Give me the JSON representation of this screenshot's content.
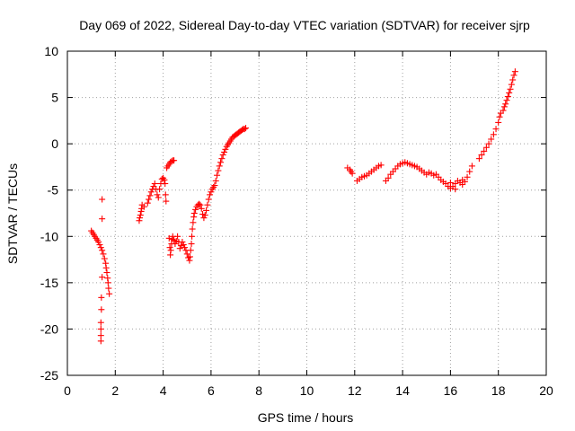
{
  "chart_data": {
    "type": "scatter",
    "title": "Day 069 of 2022, Sidereal Day-to-day VTEC variation (SDTVAR) for receiver sjrp",
    "xlabel": "GPS time / hours",
    "ylabel": "SDTVAR / TECUs",
    "xlim": [
      0,
      20
    ],
    "ylim": [
      -25,
      10
    ],
    "xticks": [
      "0",
      "2",
      "4",
      "6",
      "8",
      "10",
      "12",
      "14",
      "16",
      "18",
      "20"
    ],
    "yticks": [
      "10",
      "5",
      "0",
      "-5",
      "-10",
      "-15",
      "-20",
      "-25"
    ],
    "grid": true,
    "marker": "+",
    "color": "#ff0000",
    "series": [
      {
        "name": "sjrp",
        "points": [
          [
            1.0,
            -9.4
          ],
          [
            1.05,
            -9.6
          ],
          [
            1.1,
            -9.8
          ],
          [
            1.15,
            -10.0
          ],
          [
            1.2,
            -10.2
          ],
          [
            1.25,
            -10.4
          ],
          [
            1.3,
            -10.6
          ],
          [
            1.35,
            -10.9
          ],
          [
            1.4,
            -11.2
          ],
          [
            1.45,
            -11.5
          ],
          [
            1.5,
            -11.9
          ],
          [
            1.55,
            -12.4
          ],
          [
            1.6,
            -12.9
          ],
          [
            1.62,
            -13.4
          ],
          [
            1.65,
            -13.9
          ],
          [
            1.68,
            -14.5
          ],
          [
            1.7,
            -15.0
          ],
          [
            1.72,
            -15.6
          ],
          [
            1.75,
            -16.2
          ],
          [
            1.45,
            -6.0
          ],
          [
            1.45,
            -8.1
          ],
          [
            1.45,
            -14.4
          ],
          [
            1.42,
            -16.6
          ],
          [
            1.42,
            -17.9
          ],
          [
            1.4,
            -19.3
          ],
          [
            1.4,
            -20.0
          ],
          [
            1.4,
            -20.7
          ],
          [
            1.4,
            -21.3
          ],
          [
            3.0,
            -8.3
          ],
          [
            3.02,
            -8.0
          ],
          [
            3.05,
            -7.7
          ],
          [
            3.08,
            -7.3
          ],
          [
            3.1,
            -7.0
          ],
          [
            3.12,
            -6.6
          ],
          [
            3.2,
            -6.8
          ],
          [
            3.35,
            -6.4
          ],
          [
            3.4,
            -6.0
          ],
          [
            3.45,
            -5.6
          ],
          [
            3.5,
            -5.2
          ],
          [
            3.55,
            -4.9
          ],
          [
            3.6,
            -4.6
          ],
          [
            3.65,
            -4.3
          ],
          [
            3.7,
            -4.9
          ],
          [
            3.75,
            -5.5
          ],
          [
            3.8,
            -5.8
          ],
          [
            3.85,
            -4.9
          ],
          [
            3.9,
            -4.3
          ],
          [
            3.95,
            -3.8
          ],
          [
            4.0,
            -3.7
          ],
          [
            4.05,
            -3.9
          ],
          [
            4.08,
            -4.3
          ],
          [
            4.1,
            -5.5
          ],
          [
            4.12,
            -6.2
          ],
          [
            4.15,
            -2.6
          ],
          [
            4.2,
            -2.4
          ],
          [
            4.25,
            -2.2
          ],
          [
            4.3,
            -2.0
          ],
          [
            4.35,
            -1.9
          ],
          [
            4.4,
            -1.8
          ],
          [
            4.45,
            -1.8
          ],
          [
            4.25,
            -10.2
          ],
          [
            4.28,
            -11.2
          ],
          [
            4.3,
            -12.0
          ],
          [
            4.32,
            -11.5
          ],
          [
            4.35,
            -10.8
          ],
          [
            4.38,
            -10.3
          ],
          [
            4.4,
            -10.0
          ],
          [
            4.45,
            -10.4
          ],
          [
            4.5,
            -10.8
          ],
          [
            4.55,
            -10.5
          ],
          [
            4.6,
            -10.0
          ],
          [
            4.65,
            -10.6
          ],
          [
            4.7,
            -11.3
          ],
          [
            4.75,
            -11.0
          ],
          [
            4.8,
            -10.6
          ],
          [
            4.85,
            -10.9
          ],
          [
            4.9,
            -11.2
          ],
          [
            4.95,
            -11.5
          ],
          [
            5.0,
            -11.9
          ],
          [
            5.05,
            -12.3
          ],
          [
            5.1,
            -12.6
          ],
          [
            5.12,
            -12.2
          ],
          [
            5.15,
            -11.5
          ],
          [
            5.18,
            -10.8
          ],
          [
            5.2,
            -10.0
          ],
          [
            5.22,
            -9.2
          ],
          [
            5.25,
            -8.5
          ],
          [
            5.28,
            -7.9
          ],
          [
            5.3,
            -7.5
          ],
          [
            5.35,
            -7.1
          ],
          [
            5.4,
            -6.8
          ],
          [
            5.45,
            -6.6
          ],
          [
            5.5,
            -6.5
          ],
          [
            5.55,
            -6.6
          ],
          [
            5.6,
            -7.0
          ],
          [
            5.65,
            -7.6
          ],
          [
            5.7,
            -8.0
          ],
          [
            5.75,
            -7.7
          ],
          [
            5.8,
            -7.2
          ],
          [
            5.85,
            -6.6
          ],
          [
            5.9,
            -6.0
          ],
          [
            5.95,
            -5.5
          ],
          [
            6.0,
            -5.2
          ],
          [
            6.05,
            -4.9
          ],
          [
            6.1,
            -4.7
          ],
          [
            6.15,
            -4.5
          ],
          [
            6.2,
            -4.0
          ],
          [
            6.25,
            -3.4
          ],
          [
            6.3,
            -2.9
          ],
          [
            6.35,
            -2.4
          ],
          [
            6.4,
            -2.0
          ],
          [
            6.45,
            -1.6
          ],
          [
            6.5,
            -1.2
          ],
          [
            6.55,
            -0.9
          ],
          [
            6.6,
            -0.6
          ],
          [
            6.65,
            -0.3
          ],
          [
            6.7,
            -0.1
          ],
          [
            6.75,
            0.1
          ],
          [
            6.8,
            0.3
          ],
          [
            6.85,
            0.5
          ],
          [
            6.9,
            0.7
          ],
          [
            6.95,
            0.8
          ],
          [
            7.0,
            0.9
          ],
          [
            7.05,
            1.0
          ],
          [
            7.1,
            1.1
          ],
          [
            7.15,
            1.2
          ],
          [
            7.2,
            1.3
          ],
          [
            7.25,
            1.4
          ],
          [
            7.3,
            1.5
          ],
          [
            7.35,
            1.6
          ],
          [
            7.4,
            1.6
          ],
          [
            7.45,
            1.7
          ],
          [
            11.7,
            -2.6
          ],
          [
            11.8,
            -2.8
          ],
          [
            11.85,
            -3.0
          ],
          [
            11.9,
            -3.2
          ],
          [
            12.1,
            -4.0
          ],
          [
            12.2,
            -3.8
          ],
          [
            12.3,
            -3.6
          ],
          [
            12.4,
            -3.5
          ],
          [
            12.5,
            -3.4
          ],
          [
            12.6,
            -3.2
          ],
          [
            12.7,
            -3.0
          ],
          [
            12.8,
            -2.8
          ],
          [
            12.9,
            -2.6
          ],
          [
            13.0,
            -2.4
          ],
          [
            13.1,
            -2.3
          ],
          [
            13.3,
            -4.0
          ],
          [
            13.4,
            -3.7
          ],
          [
            13.5,
            -3.3
          ],
          [
            13.6,
            -3.0
          ],
          [
            13.7,
            -2.7
          ],
          [
            13.8,
            -2.4
          ],
          [
            13.9,
            -2.2
          ],
          [
            14.0,
            -2.1
          ],
          [
            14.1,
            -2.0
          ],
          [
            14.2,
            -2.1
          ],
          [
            14.3,
            -2.2
          ],
          [
            14.4,
            -2.3
          ],
          [
            14.5,
            -2.4
          ],
          [
            14.6,
            -2.5
          ],
          [
            14.7,
            -2.7
          ],
          [
            14.8,
            -2.9
          ],
          [
            14.9,
            -3.1
          ],
          [
            15.0,
            -3.3
          ],
          [
            15.1,
            -3.1
          ],
          [
            15.2,
            -3.2
          ],
          [
            15.3,
            -3.4
          ],
          [
            15.4,
            -3.3
          ],
          [
            15.5,
            -3.6
          ],
          [
            15.6,
            -3.9
          ],
          [
            15.7,
            -4.1
          ],
          [
            15.8,
            -4.3
          ],
          [
            15.9,
            -4.6
          ],
          [
            16.0,
            -4.8
          ],
          [
            16.1,
            -4.6
          ],
          [
            16.2,
            -4.3
          ],
          [
            16.3,
            -4.0
          ],
          [
            16.4,
            -4.2
          ],
          [
            16.5,
            -4.4
          ],
          [
            16.6,
            -4.1
          ],
          [
            16.7,
            -3.6
          ],
          [
            16.8,
            -3.0
          ],
          [
            16.9,
            -2.4
          ],
          [
            16.0,
            -4.2
          ],
          [
            16.2,
            -4.9
          ],
          [
            16.5,
            -3.9
          ],
          [
            17.2,
            -1.6
          ],
          [
            17.3,
            -1.2
          ],
          [
            17.4,
            -0.8
          ],
          [
            17.5,
            -0.4
          ],
          [
            17.6,
            0.0
          ],
          [
            17.7,
            0.5
          ],
          [
            17.8,
            1.0
          ],
          [
            17.9,
            1.6
          ],
          [
            18.0,
            2.3
          ],
          [
            18.05,
            2.9
          ],
          [
            18.1,
            3.3
          ],
          [
            18.2,
            3.6
          ],
          [
            18.25,
            4.0
          ],
          [
            18.3,
            4.3
          ],
          [
            18.35,
            4.7
          ],
          [
            18.4,
            5.1
          ],
          [
            18.45,
            5.5
          ],
          [
            18.5,
            5.9
          ],
          [
            18.55,
            6.4
          ],
          [
            18.6,
            6.9
          ],
          [
            18.65,
            7.4
          ],
          [
            18.7,
            7.8
          ]
        ]
      }
    ]
  }
}
